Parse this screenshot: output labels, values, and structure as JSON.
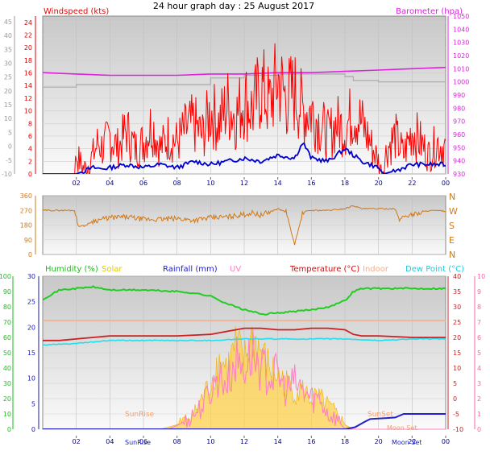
{
  "title": "24 hour graph day : 25 August 2017",
  "colors": {
    "wind_gust": "#ff0000",
    "wind_avg": "#0000cc",
    "barometer": "#e020e0",
    "barometer_secondary": "#aaaaaa",
    "direction": "#d07818",
    "humidity": "#22cc22",
    "solar": "#ffd040",
    "rainfall": "#2020cc",
    "uv": "#ff80c0",
    "temperature": "#cc2020",
    "indoor": "#f0b090",
    "dew_point": "#20e0f0"
  },
  "labels": {
    "windspeed": "Windspeed (kts)",
    "barometer": "Barometer (hpa)",
    "humidity": "Humidity (%)",
    "solar": "Solar",
    "rainfall": "Rainfall (mm)",
    "uv": "UV",
    "temperature": "Temperature (°C)",
    "indoor": "Indoor",
    "dew_point": "Dew Point (°C)",
    "sunrise": "SunRise",
    "sunset": "SunSet",
    "moonset": "Moon Set",
    "moonset_axis": "Moon Set"
  },
  "compass": [
    "N",
    "W",
    "S",
    "E",
    "N"
  ],
  "chart_data": [
    {
      "type": "line",
      "name": "wind-and-pressure",
      "x_ticks": [
        "02",
        "04",
        "06",
        "08",
        "10",
        "12",
        "14",
        "16",
        "18",
        "20",
        "22",
        "00"
      ],
      "xlim": [
        0,
        24
      ],
      "left_axis_ticks": [
        24,
        22,
        20,
        18,
        16,
        14,
        12,
        10,
        8,
        6,
        4,
        2,
        0
      ],
      "ylim_left": [
        0,
        25
      ],
      "far_left_axis_ticks": [
        45,
        40,
        35,
        30,
        25,
        20,
        15,
        10,
        5,
        0,
        -5,
        -10
      ],
      "far_left_range": [
        -10,
        47
      ],
      "right_axis_ticks": [
        1050,
        1040,
        1030,
        1020,
        1010,
        1000,
        990,
        980,
        970,
        960,
        950,
        940,
        930
      ],
      "ylim_right": [
        930,
        1050
      ],
      "series": [
        {
          "name": "Windspeed (kts)",
          "role": "gust",
          "x": [
            0,
            1.9,
            2.0,
            2.4,
            2.6,
            3.0,
            3.3,
            3.6,
            4.0,
            4.5,
            5.0,
            5.5,
            6.0,
            6.5,
            7.0,
            7.5,
            8.0,
            8.5,
            9.0,
            9.5,
            10.0,
            10.5,
            11.0,
            11.5,
            12.0,
            12.5,
            13.0,
            13.5,
            14.0,
            14.5,
            15.0,
            15.5,
            16.0,
            16.5,
            17.0,
            17.5,
            18.0,
            18.5,
            19.0,
            19.5,
            20.0,
            20.2,
            20.5,
            21.0,
            21.5,
            22.0,
            22.5,
            23.0,
            23.5,
            24.0
          ],
          "values": [
            0,
            0,
            3,
            1,
            1,
            3,
            5,
            4,
            6,
            4,
            7,
            4,
            5,
            8,
            4,
            6,
            5,
            7,
            8,
            6,
            10,
            8,
            11,
            9,
            12,
            10,
            14,
            11,
            15,
            12,
            13,
            10,
            10,
            8,
            6,
            8,
            7,
            10,
            8,
            5,
            2,
            0,
            4,
            6,
            3,
            7,
            5,
            3,
            5,
            4
          ]
        },
        {
          "name": "Windspeed (kts)",
          "role": "average",
          "x": [
            0,
            2.0,
            2.5,
            3.0,
            3.5,
            4.0,
            5.0,
            6.0,
            7.0,
            8.0,
            9.0,
            10.0,
            11.0,
            12.0,
            13.0,
            14.0,
            15.0,
            15.5,
            16.0,
            17.0,
            18.0,
            18.5,
            19.0,
            20.0,
            20.3,
            21.0,
            22.0,
            23.0,
            24.0
          ],
          "values": [
            0,
            0,
            0.5,
            1,
            0.8,
            1,
            1.5,
            1,
            1.5,
            1,
            2,
            1.5,
            2,
            2.5,
            2,
            3,
            2.5,
            5,
            2.5,
            2,
            4,
            3,
            2,
            1,
            0,
            0.5,
            1.5,
            1.5,
            1.5
          ]
        },
        {
          "name": "Barometer (hpa)",
          "role": "primary",
          "x": [
            0,
            2,
            4,
            6,
            8,
            10,
            12,
            14,
            16,
            18,
            20,
            22,
            24
          ],
          "values": [
            1007,
            1006,
            1005,
            1005,
            1005,
            1006,
            1006,
            1007,
            1007,
            1008,
            1009,
            1010,
            1011
          ]
        },
        {
          "name": "Barometer (hpa)",
          "role": "secondary",
          "x": [
            0,
            1.9,
            2.0,
            4.0,
            8.0,
            9.5,
            10.0,
            11.5,
            12.0,
            14.0,
            16.0,
            18.0,
            18.5,
            20.0,
            22.0,
            24.0
          ],
          "values": [
            996,
            996,
            998,
            998,
            998,
            998,
            1003,
            1003,
            1005,
            1006,
            1006,
            1004,
            1001,
            1000,
            1000,
            999
          ]
        }
      ]
    },
    {
      "type": "line",
      "name": "wind-direction",
      "x_ticks": [
        "02",
        "04",
        "06",
        "08",
        "10",
        "12",
        "14",
        "16",
        "18",
        "20",
        "22",
        "00"
      ],
      "xlim": [
        0,
        24
      ],
      "left_axis_ticks": [
        360,
        270,
        180,
        90,
        0
      ],
      "ylim": [
        0,
        360
      ],
      "series": [
        {
          "name": "Wind direction",
          "x": [
            0,
            1.9,
            2.1,
            2.5,
            3.0,
            4,
            5,
            6,
            7,
            8,
            9,
            10,
            11,
            12,
            12.5,
            13,
            14,
            14.5,
            15,
            15.5,
            16,
            17,
            18,
            18.5,
            19,
            20,
            21,
            21.2,
            21.5,
            22,
            22.5,
            23,
            24
          ],
          "values": [
            270,
            270,
            175,
            175,
            205,
            225,
            230,
            215,
            215,
            220,
            210,
            225,
            230,
            245,
            255,
            240,
            280,
            260,
            60,
            260,
            270,
            270,
            280,
            300,
            280,
            280,
            280,
            210,
            235,
            245,
            255,
            270,
            265
          ]
        }
      ]
    },
    {
      "type": "line",
      "name": "temperature-humidity",
      "x_ticks": [
        "02",
        "04",
        "06",
        "08",
        "10",
        "12",
        "14",
        "16",
        "18",
        "20",
        "22",
        "00"
      ],
      "xlim": [
        0,
        24
      ],
      "far_left_axis_ticks": [
        100,
        90,
        80,
        70,
        60,
        50,
        40,
        30,
        20,
        10,
        0
      ],
      "ylim_humidity": [
        0,
        100
      ],
      "left_axis_ticks": [
        30,
        25,
        20,
        15,
        10,
        5,
        0
      ],
      "ylim_rain": [
        0,
        30
      ],
      "right_axis_ticks": [
        40,
        35,
        30,
        25,
        20,
        15,
        10,
        5,
        0,
        -5,
        -10
      ],
      "ylim_temperature": [
        -10,
        40
      ],
      "far_right_axis_ticks": [
        10,
        9,
        8,
        7,
        6,
        5,
        4,
        3,
        2,
        1,
        0
      ],
      "ylim_uv": [
        0,
        10
      ],
      "series": [
        {
          "name": "Humidity (%)",
          "x": [
            0,
            0.5,
            1,
            2,
            3,
            4,
            6,
            8,
            9,
            10,
            11,
            11.5,
            12,
            12.5,
            13,
            14,
            15,
            16,
            17,
            18,
            18.5,
            19,
            20,
            22,
            24
          ],
          "values": [
            85,
            88,
            91,
            92,
            93,
            91,
            91,
            90,
            89,
            87,
            82,
            80,
            78,
            77,
            75,
            76,
            77,
            78,
            80,
            84,
            90,
            92,
            92,
            92,
            92
          ]
        },
        {
          "name": "Temperature (°C)",
          "x": [
            0,
            1,
            2,
            3,
            4,
            5,
            8,
            10,
            11,
            12,
            13,
            14,
            15,
            16,
            17,
            18,
            18.5,
            19,
            20,
            22,
            24
          ],
          "values": [
            19,
            19,
            19.5,
            20,
            20.5,
            20.5,
            20.5,
            21,
            22,
            23,
            23,
            22.5,
            22.5,
            23,
            23,
            22.5,
            21,
            20.5,
            20.5,
            20,
            20
          ]
        },
        {
          "name": "Indoor",
          "x": [
            0,
            24
          ],
          "values": [
            25.5,
            25.5
          ]
        },
        {
          "name": "Dew Point (°C)",
          "x": [
            0,
            2,
            4,
            6,
            8,
            10,
            12,
            14,
            16,
            18,
            20,
            22,
            24
          ],
          "values": [
            17.5,
            18,
            19,
            19,
            19,
            19,
            19.5,
            19.5,
            19.5,
            19.5,
            19,
            19.5,
            19.5
          ]
        },
        {
          "name": "Rainfall (mm)",
          "x": [
            0,
            18,
            18.6,
            19.2,
            19.5,
            20.5,
            21,
            21.5,
            23.5,
            24
          ],
          "values": [
            0,
            0,
            0.4,
            1.5,
            2,
            2.2,
            2.3,
            3,
            3,
            3
          ]
        },
        {
          "name": "Solar",
          "x": [
            0,
            7,
            8,
            9,
            9.5,
            10,
            10.5,
            11,
            11.5,
            12,
            12.5,
            13,
            13.5,
            14,
            14.5,
            15,
            15.5,
            16,
            16.5,
            17,
            17.5,
            18,
            18.5,
            24
          ],
          "values": [
            0,
            0,
            0.3,
            1,
            2,
            3,
            4.5,
            4,
            5.5,
            4.5,
            6,
            5,
            4,
            3.5,
            3,
            2.5,
            2.5,
            2,
            2,
            1.5,
            1,
            0.3,
            0,
            0
          ]
        },
        {
          "name": "UV",
          "x": [
            0,
            7.5,
            8.5,
            9.5,
            10,
            10.5,
            11,
            11.5,
            12,
            12.5,
            13,
            13.5,
            14,
            14.5,
            15,
            15.5,
            16,
            16.5,
            17,
            17.5,
            18,
            24
          ],
          "values": [
            0,
            0,
            0.5,
            1.5,
            2.5,
            3.5,
            3,
            4.5,
            4,
            5,
            4,
            3.5,
            3.5,
            2.5,
            3,
            2.5,
            2,
            2,
            1,
            0.7,
            0,
            0
          ]
        }
      ]
    }
  ]
}
